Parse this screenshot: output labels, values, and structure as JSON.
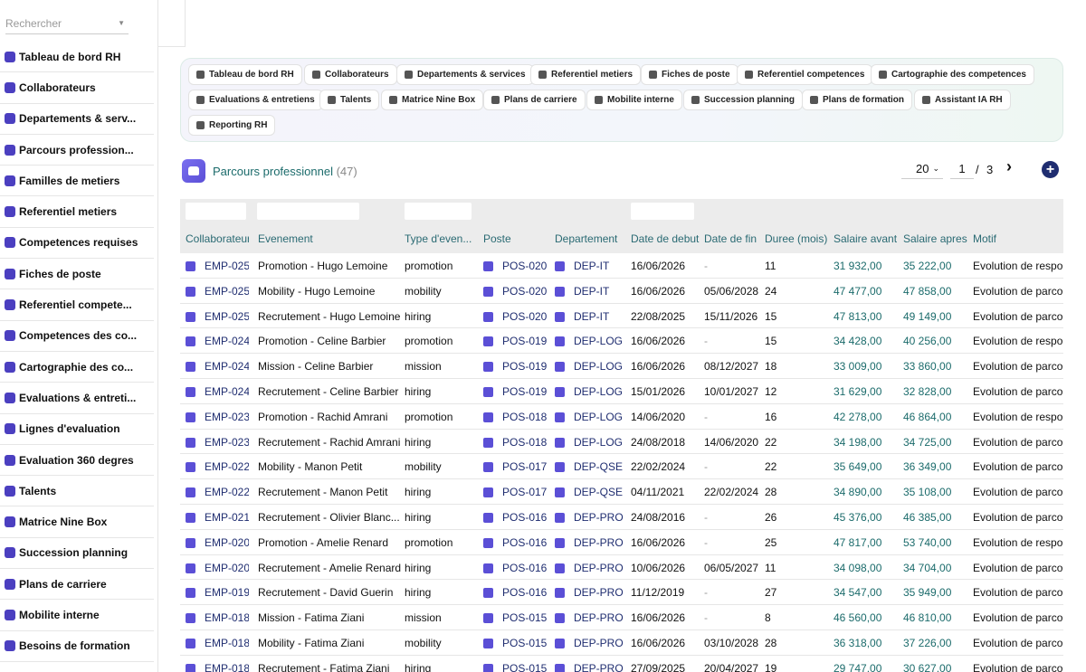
{
  "sidebar": {
    "search_placeholder": "Rechercher",
    "items": [
      {
        "label": "Tableau de bord RH",
        "icon": "gauge-icon"
      },
      {
        "label": "Collaborateurs",
        "icon": "user-icon"
      },
      {
        "label": "Departements & serv...",
        "icon": "building-icon"
      },
      {
        "label": "Parcours profession...",
        "icon": "history-icon"
      },
      {
        "label": "Familles de metiers",
        "icon": "sitemap-icon"
      },
      {
        "label": "Referentiel metiers",
        "icon": "briefcase-icon"
      },
      {
        "label": "Competences requises",
        "icon": "list-icon"
      },
      {
        "label": "Fiches de poste",
        "icon": "file-icon"
      },
      {
        "label": "Referentiel compete...",
        "icon": "gear-icon"
      },
      {
        "label": "Competences des co...",
        "icon": "star-icon"
      },
      {
        "label": "Cartographie des co...",
        "icon": "grid-icon"
      },
      {
        "label": "Evaluations & entreti...",
        "icon": "clipboard-icon"
      },
      {
        "label": "Lignes d'evaluation",
        "icon": "list-icon"
      },
      {
        "label": "Evaluation 360 degres",
        "icon": "comments-icon"
      },
      {
        "label": "Talents",
        "icon": "user-icon"
      },
      {
        "label": "Matrice Nine Box",
        "icon": "grid-icon"
      },
      {
        "label": "Succession planning",
        "icon": "user-tie-icon"
      },
      {
        "label": "Plans de carriere",
        "icon": "road-icon"
      },
      {
        "label": "Mobilite interne",
        "icon": "arrows-icon"
      },
      {
        "label": "Besoins de formation",
        "icon": "bulb-icon"
      }
    ]
  },
  "nav": {
    "pills": [
      {
        "label": "Tableau de bord RH",
        "icon": "gauge-icon"
      },
      {
        "label": "Collaborateurs",
        "icon": "user-icon"
      },
      {
        "label": "Departements & services",
        "icon": "building-icon"
      },
      {
        "label": "Referentiel metiers",
        "icon": "briefcase-icon"
      },
      {
        "label": "Fiches de poste",
        "icon": "file-icon"
      },
      {
        "label": "Referentiel competences",
        "icon": "gear-icon"
      },
      {
        "label": "Cartographie des competences",
        "icon": "grid-icon"
      },
      {
        "label": "Evaluations & entretiens",
        "icon": "clipboard-icon"
      },
      {
        "label": "Talents",
        "icon": "award-icon"
      },
      {
        "label": "Matrice Nine Box",
        "icon": "grid-icon"
      },
      {
        "label": "Plans de carriere",
        "icon": "road-icon"
      },
      {
        "label": "Mobilite interne",
        "icon": "arrows-icon"
      },
      {
        "label": "Succession planning",
        "icon": "user-tie-icon"
      },
      {
        "label": "Plans de formation",
        "icon": "graduation-icon"
      },
      {
        "label": "Assistant IA RH",
        "icon": "brain-icon"
      },
      {
        "label": "Reporting RH",
        "icon": "chart-pie-icon"
      }
    ]
  },
  "header": {
    "title": "Parcours professionnel",
    "count": "(47)",
    "page_size": "20",
    "page": "1",
    "separator": "/",
    "total_pages": "3",
    "next": "›",
    "add": "+"
  },
  "table": {
    "columns": [
      "Collaborateur",
      "Evenement",
      "Type d'even...",
      "Poste",
      "Departement",
      "Date de debut",
      "Date de fin",
      "Duree (mois)",
      "Salaire avant",
      "Salaire apres",
      "Motif"
    ],
    "rows": [
      [
        "EMP-025",
        "Promotion - Hugo Lemoine",
        "promotion",
        "POS-020",
        "DEP-IT",
        "16/06/2026",
        "-",
        "11",
        "31 932,00",
        "35 222,00",
        "Evolution de respons"
      ],
      [
        "EMP-025",
        "Mobility - Hugo Lemoine",
        "mobility",
        "POS-020",
        "DEP-IT",
        "16/06/2026",
        "05/06/2028",
        "24",
        "47 477,00",
        "47 858,00",
        "Evolution de parcour"
      ],
      [
        "EMP-025",
        "Recrutement - Hugo Lemoine",
        "hiring",
        "POS-020",
        "DEP-IT",
        "22/08/2025",
        "15/11/2026",
        "15",
        "47 813,00",
        "49 149,00",
        "Evolution de parcour"
      ],
      [
        "EMP-024",
        "Promotion - Celine Barbier",
        "promotion",
        "POS-019",
        "DEP-LOG",
        "16/06/2026",
        "-",
        "15",
        "34 428,00",
        "40 256,00",
        "Evolution de respons"
      ],
      [
        "EMP-024",
        "Mission - Celine Barbier",
        "mission",
        "POS-019",
        "DEP-LOG",
        "16/06/2026",
        "08/12/2027",
        "18",
        "33 009,00",
        "33 860,00",
        "Evolution de parcour"
      ],
      [
        "EMP-024",
        "Recrutement - Celine Barbier",
        "hiring",
        "POS-019",
        "DEP-LOG",
        "15/01/2026",
        "10/01/2027",
        "12",
        "31 629,00",
        "32 828,00",
        "Evolution de parcour"
      ],
      [
        "EMP-023",
        "Promotion - Rachid Amrani",
        "promotion",
        "POS-018",
        "DEP-LOG",
        "14/06/2020",
        "-",
        "16",
        "42 278,00",
        "46 864,00",
        "Evolution de respons"
      ],
      [
        "EMP-023",
        "Recrutement - Rachid Amrani",
        "hiring",
        "POS-018",
        "DEP-LOG",
        "24/08/2018",
        "14/06/2020",
        "22",
        "34 198,00",
        "34 725,00",
        "Evolution de parcour"
      ],
      [
        "EMP-022",
        "Mobility - Manon Petit",
        "mobility",
        "POS-017",
        "DEP-QSE",
        "22/02/2024",
        "-",
        "22",
        "35 649,00",
        "36 349,00",
        "Evolution de parcour"
      ],
      [
        "EMP-022",
        "Recrutement - Manon Petit",
        "hiring",
        "POS-017",
        "DEP-QSE",
        "04/11/2021",
        "22/02/2024",
        "28",
        "34 890,00",
        "35 108,00",
        "Evolution de parcour"
      ],
      [
        "EMP-021",
        "Recrutement - Olivier Blanc...",
        "hiring",
        "POS-016",
        "DEP-PRO",
        "24/08/2016",
        "-",
        "26",
        "45 376,00",
        "46 385,00",
        "Evolution de parcour"
      ],
      [
        "EMP-020",
        "Promotion - Amelie Renard",
        "promotion",
        "POS-016",
        "DEP-PRO",
        "16/06/2026",
        "-",
        "25",
        "47 817,00",
        "53 740,00",
        "Evolution de respons"
      ],
      [
        "EMP-020",
        "Recrutement - Amelie Renard",
        "hiring",
        "POS-016",
        "DEP-PRO",
        "10/06/2026",
        "06/05/2027",
        "11",
        "34 098,00",
        "34 704,00",
        "Evolution de parcour"
      ],
      [
        "EMP-019",
        "Recrutement - David Guerin",
        "hiring",
        "POS-016",
        "DEP-PRO",
        "11/12/2019",
        "-",
        "27",
        "34 547,00",
        "35 949,00",
        "Evolution de parcour"
      ],
      [
        "EMP-018",
        "Mission - Fatima Ziani",
        "mission",
        "POS-015",
        "DEP-PRO",
        "16/06/2026",
        "-",
        "8",
        "46 560,00",
        "46 810,00",
        "Evolution de parcour"
      ],
      [
        "EMP-018",
        "Mobility - Fatima Ziani",
        "mobility",
        "POS-015",
        "DEP-PRO",
        "16/06/2026",
        "03/10/2028",
        "28",
        "36 318,00",
        "37 226,00",
        "Evolution de parcour"
      ],
      [
        "EMP-018",
        "Recrutement - Fatima Ziani",
        "hiring",
        "POS-015",
        "DEP-PRO",
        "27/09/2025",
        "20/04/2027",
        "19",
        "29 747,00",
        "30 627,00",
        "Evolution de parcour"
      ]
    ]
  }
}
